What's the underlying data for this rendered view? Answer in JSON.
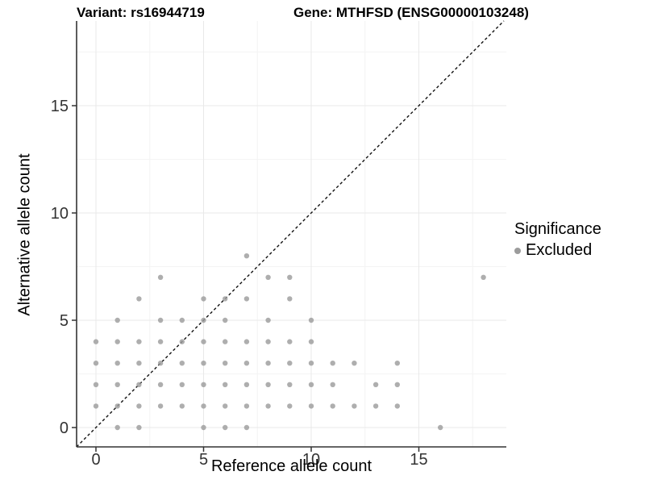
{
  "titles": {
    "variant": "Variant: rs16944719",
    "gene": "Gene: MTHFSD (ENSG00000103248)"
  },
  "legend": {
    "title": "Significance",
    "items": [
      {
        "label": "Excluded",
        "color": "#9c9c9c"
      }
    ]
  },
  "colors": {
    "point": "#9c9c9c",
    "grid_major": "#e9e9e9",
    "grid_minor": "#f4f4f4",
    "axis_line": "#333333",
    "tick_mark": "#333333",
    "diagonal": "#111111"
  },
  "chart_data": {
    "type": "scatter",
    "title": "Variant: rs16944719 / Gene: MTHFSD (ENSG00000103248)",
    "xlabel": "Reference allele count",
    "ylabel": "Alternative allele count",
    "xlim": [
      -0.9,
      19
    ],
    "ylim": [
      -0.9,
      18.9
    ],
    "x_ticks": [
      0,
      5,
      10,
      15
    ],
    "y_ticks": [
      0,
      5,
      10,
      15
    ],
    "minor_gridlines": [
      2.5,
      7.5,
      12.5,
      17.5
    ],
    "grid": "on",
    "legend_position": "right",
    "identity_line": {
      "style": "dashed",
      "equation": "y = x"
    },
    "series": [
      {
        "name": "Excluded",
        "color": "#9c9c9c",
        "points": [
          [
            1,
            0
          ],
          [
            2,
            0
          ],
          [
            5,
            0
          ],
          [
            6,
            0
          ],
          [
            7,
            0
          ],
          [
            16,
            0
          ],
          [
            0,
            1
          ],
          [
            1,
            1
          ],
          [
            2,
            1
          ],
          [
            3,
            1
          ],
          [
            4,
            1
          ],
          [
            5,
            1
          ],
          [
            6,
            1
          ],
          [
            7,
            1
          ],
          [
            8,
            1
          ],
          [
            9,
            1
          ],
          [
            10,
            1
          ],
          [
            11,
            1
          ],
          [
            12,
            1
          ],
          [
            13,
            1
          ],
          [
            14,
            1
          ],
          [
            0,
            2
          ],
          [
            1,
            2
          ],
          [
            2,
            2
          ],
          [
            3,
            2
          ],
          [
            4,
            2
          ],
          [
            5,
            2
          ],
          [
            6,
            2
          ],
          [
            7,
            2
          ],
          [
            8,
            2
          ],
          [
            9,
            2
          ],
          [
            10,
            2
          ],
          [
            11,
            2
          ],
          [
            13,
            2
          ],
          [
            14,
            2
          ],
          [
            0,
            3
          ],
          [
            1,
            3
          ],
          [
            2,
            3
          ],
          [
            3,
            3
          ],
          [
            4,
            3
          ],
          [
            5,
            3
          ],
          [
            6,
            3
          ],
          [
            7,
            3
          ],
          [
            8,
            3
          ],
          [
            9,
            3
          ],
          [
            10,
            3
          ],
          [
            11,
            3
          ],
          [
            12,
            3
          ],
          [
            14,
            3
          ],
          [
            0,
            4
          ],
          [
            1,
            4
          ],
          [
            2,
            4
          ],
          [
            3,
            4
          ],
          [
            4,
            4
          ],
          [
            5,
            4
          ],
          [
            6,
            4
          ],
          [
            7,
            4
          ],
          [
            8,
            4
          ],
          [
            9,
            4
          ],
          [
            10,
            4
          ],
          [
            1,
            5
          ],
          [
            3,
            5
          ],
          [
            4,
            5
          ],
          [
            5,
            5
          ],
          [
            6,
            5
          ],
          [
            8,
            5
          ],
          [
            10,
            5
          ],
          [
            2,
            6
          ],
          [
            5,
            6
          ],
          [
            6,
            6
          ],
          [
            7,
            6
          ],
          [
            9,
            6
          ],
          [
            3,
            7
          ],
          [
            8,
            7
          ],
          [
            9,
            7
          ],
          [
            18,
            7
          ],
          [
            7,
            8
          ]
        ]
      }
    ]
  }
}
